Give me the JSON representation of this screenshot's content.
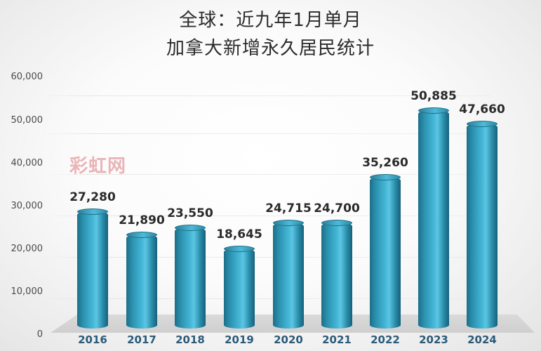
{
  "chart_data": {
    "type": "bar",
    "title": "全球：近九年1月单月 加拿大新增永久居民统计",
    "title_lines": [
      "全球：近九年1月单月",
      "加拿大新增永久居民统计"
    ],
    "xlabel": "",
    "ylabel": "",
    "categories": [
      "2016",
      "2017",
      "2018",
      "2019",
      "2020",
      "2021",
      "2022",
      "2023",
      "2024"
    ],
    "values": [
      27280,
      21890,
      23550,
      18645,
      24715,
      24700,
      35260,
      50885,
      47660
    ],
    "value_labels": [
      "27,280",
      "21,890",
      "23,550",
      "18,645",
      "24,715",
      "24,700",
      "35,260",
      "50,885",
      "47,660"
    ],
    "ylim": [
      0,
      60000
    ],
    "yticks": [
      "0",
      "10,000",
      "20,000",
      "30,000",
      "40,000",
      "50,000",
      "60,000"
    ],
    "grid": true,
    "legend": null,
    "style": "3D cylinder bars",
    "bar_color": "#2a94b4",
    "watermark": "彩虹网"
  }
}
